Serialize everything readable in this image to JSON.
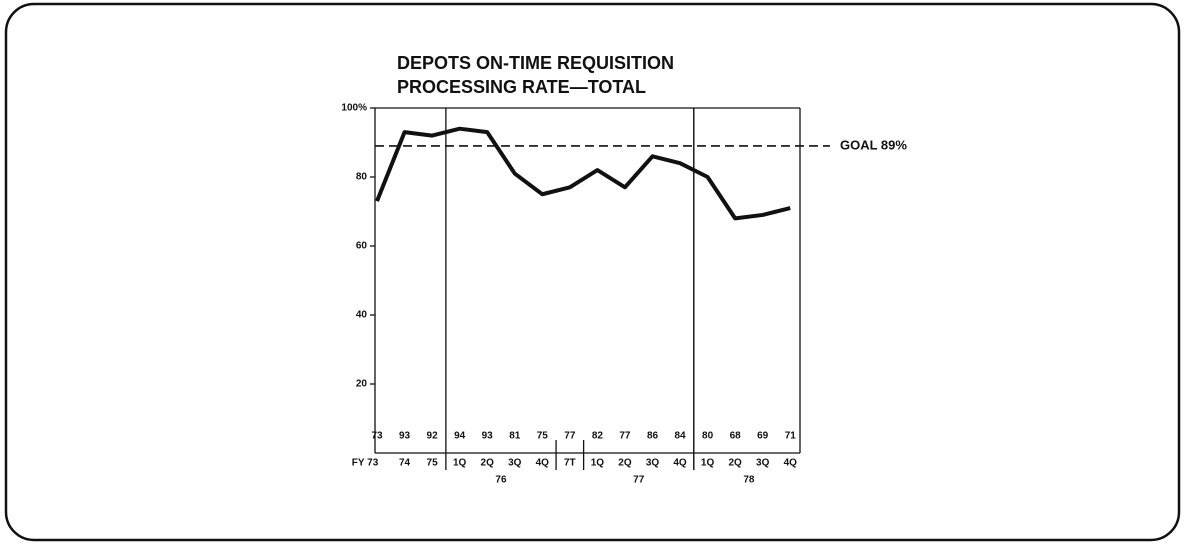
{
  "chart_data": {
    "type": "line",
    "title_lines": [
      "DEPOTS ON-TIME REQUISITION",
      "PROCESSING RATE—TOTAL"
    ],
    "categories": [
      "FY 73",
      "74",
      "75",
      "1Q",
      "2Q",
      "3Q",
      "4Q",
      "7T",
      "1Q",
      "2Q",
      "3Q",
      "4Q",
      "1Q",
      "2Q",
      "3Q",
      "4Q"
    ],
    "values": [
      73,
      93,
      92,
      94,
      93,
      81,
      75,
      77,
      82,
      77,
      86,
      84,
      80,
      68,
      69,
      71
    ],
    "groups": [
      {
        "label": "76",
        "start": 3,
        "end": 6
      },
      {
        "label": "77",
        "start": 8,
        "end": 11
      },
      {
        "label": "78",
        "start": 12,
        "end": 15
      }
    ],
    "goal": {
      "value": 89,
      "label": "GOAL 89%"
    },
    "color": "#111111",
    "ylim": [
      0,
      100
    ],
    "yticks": [
      20,
      40,
      60,
      80,
      {
        "value": 100,
        "label": "100%"
      }
    ]
  }
}
